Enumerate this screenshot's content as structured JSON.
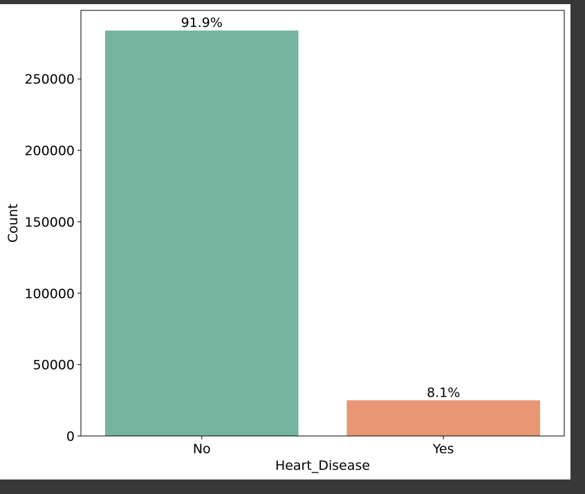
{
  "chart_data": {
    "type": "bar",
    "categories": [
      "No",
      "Yes"
    ],
    "values": [
      283883,
      24971
    ],
    "data_labels": [
      "91.9%",
      "8.1%"
    ],
    "bar_colors": [
      "#75b5a0",
      "#e99674"
    ],
    "title": "",
    "xlabel": "Heart_Disease",
    "ylabel": "Count",
    "ylim": [
      0,
      298000
    ],
    "yticks": [
      0,
      50000,
      100000,
      150000,
      200000,
      250000
    ],
    "ytick_labels": [
      "0",
      "50000",
      "100000",
      "150000",
      "200000",
      "250000"
    ],
    "grid": false,
    "legend": "none"
  },
  "colors": {
    "figure_background": "#ffffff",
    "window_background": "#383838",
    "axes_edge": "#000000"
  }
}
